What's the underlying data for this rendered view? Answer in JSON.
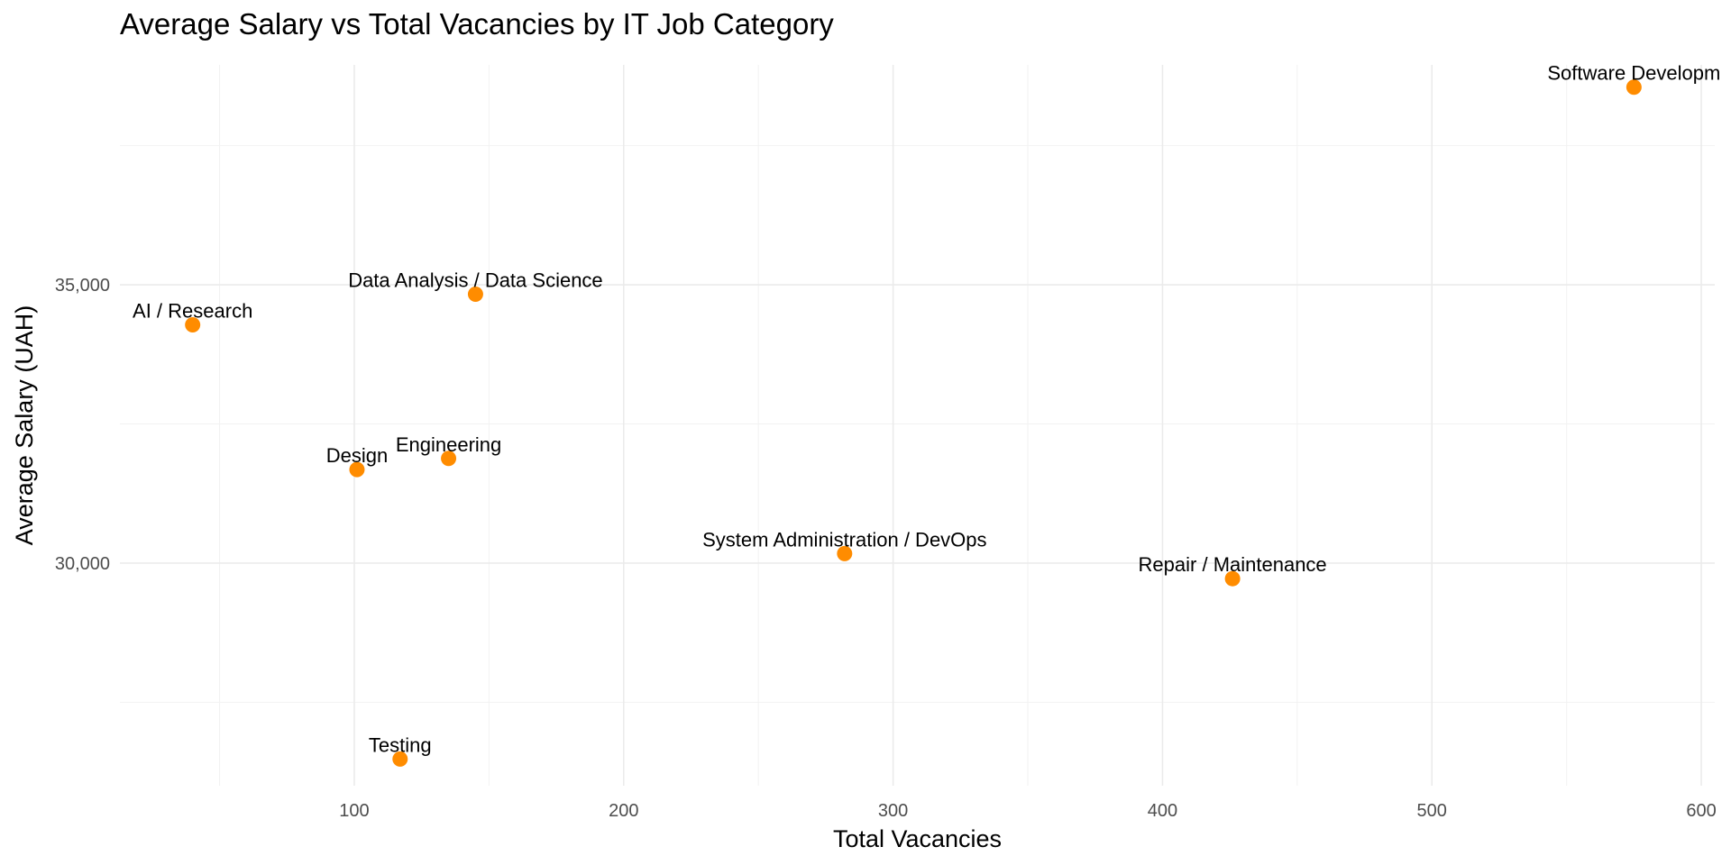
{
  "chart_data": {
    "type": "scatter",
    "title": "Average Salary vs Total Vacancies by IT Job Category",
    "xlabel": "Total Vacancies",
    "ylabel": "Average Salary (UAH)",
    "xlim": [
      13,
      605
    ],
    "ylim": [
      26000,
      38950
    ],
    "x_ticks": [
      100,
      200,
      300,
      400,
      500,
      600
    ],
    "x_tick_labels": [
      "100",
      "200",
      "300",
      "400",
      "500",
      "600"
    ],
    "y_ticks": [
      30000,
      35000
    ],
    "y_tick_labels": [
      "30,000",
      "35,000"
    ],
    "grid": true,
    "legend": "none",
    "point_color": "#FF8C00",
    "points": [
      {
        "label": "Software Developm",
        "x": 575,
        "y": 38550
      },
      {
        "label": "Data Analysis / Data Science",
        "x": 145,
        "y": 34830
      },
      {
        "label": "AI / Research",
        "x": 40,
        "y": 34280
      },
      {
        "label": "Engineering",
        "x": 135,
        "y": 31880
      },
      {
        "label": "Design",
        "x": 101,
        "y": 31680
      },
      {
        "label": "System Administration / DevOps",
        "x": 282,
        "y": 30170
      },
      {
        "label": "Repair / Maintenance",
        "x": 426,
        "y": 29720
      },
      {
        "label": "Testing",
        "x": 117,
        "y": 26480
      }
    ]
  }
}
